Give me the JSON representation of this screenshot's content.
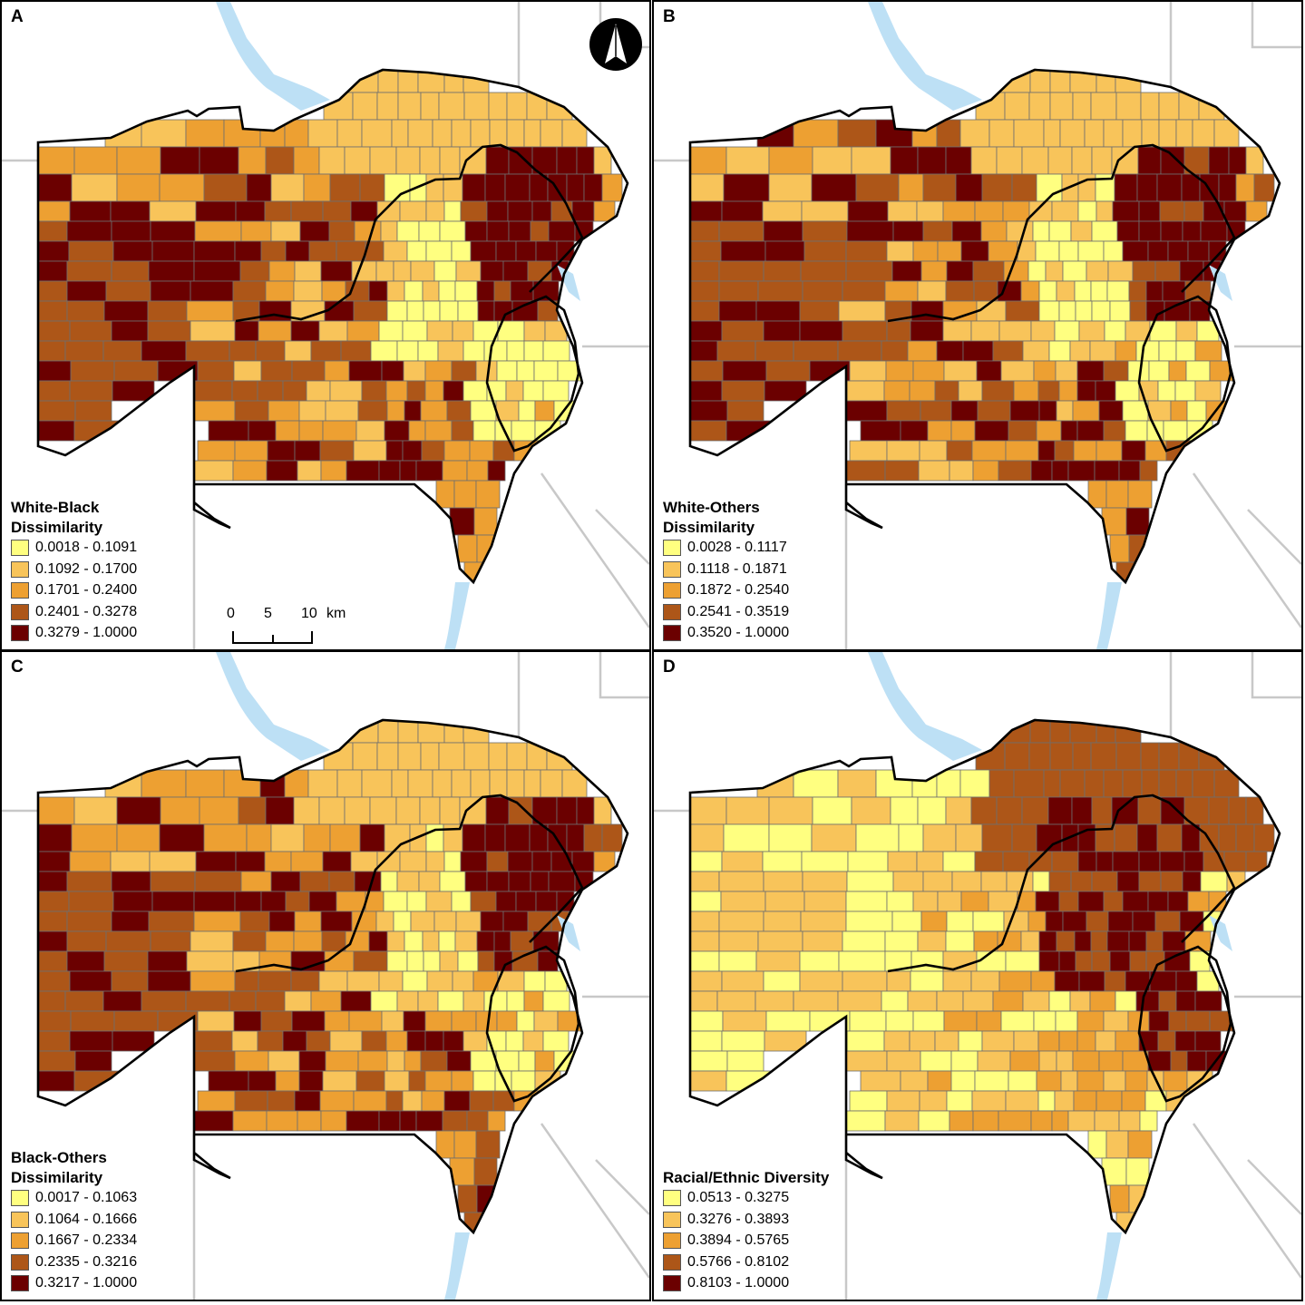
{
  "panels": [
    {
      "letter": "A",
      "legend_title": "White-Black Dissimilarity",
      "classes": [
        "0.0018 - 0.1091",
        "0.1092 - 0.1700",
        "0.1701 - 0.2400",
        "0.2401 - 0.3278",
        "0.3279 - 1.0000"
      ],
      "map_pattern": "segregation"
    },
    {
      "letter": "B",
      "legend_title": "White-Others Dissimilarity",
      "classes": [
        "0.0028 - 0.1117",
        "0.1118 - 0.1871",
        "0.1872 - 0.2540",
        "0.2541 - 0.3519",
        "0.3520 - 1.0000"
      ],
      "map_pattern": "segregation"
    },
    {
      "letter": "C",
      "legend_title": "Black-Others Dissimilarity",
      "classes": [
        "0.0017 - 0.1063",
        "0.1064 - 0.1666",
        "0.1667 - 0.2334",
        "0.2335 - 0.3216",
        "0.3217 - 1.0000"
      ],
      "map_pattern": "segregation"
    },
    {
      "letter": "D",
      "legend_title": "Racial/Ethnic Diversity",
      "classes": [
        "0.0513 - 0.3275",
        "0.3276 - 0.3893",
        "0.3894 - 0.5765",
        "0.5766 - 0.8102",
        "0.8103 - 1.0000"
      ],
      "map_pattern": "diversity"
    }
  ],
  "class_colors": [
    "#ffff80",
    "#f8c45a",
    "#eda032",
    "#ad5618",
    "#6b0000"
  ],
  "colors": {
    "water": "#bde0f5",
    "border": "#c8c8c8",
    "tract_line": "#6e6e6e",
    "outline": "#000000"
  },
  "scale_bar": {
    "ticks": [
      "0",
      "5",
      "10"
    ],
    "unit": "km"
  },
  "north_arrow_icon": "north-arrow-icon"
}
